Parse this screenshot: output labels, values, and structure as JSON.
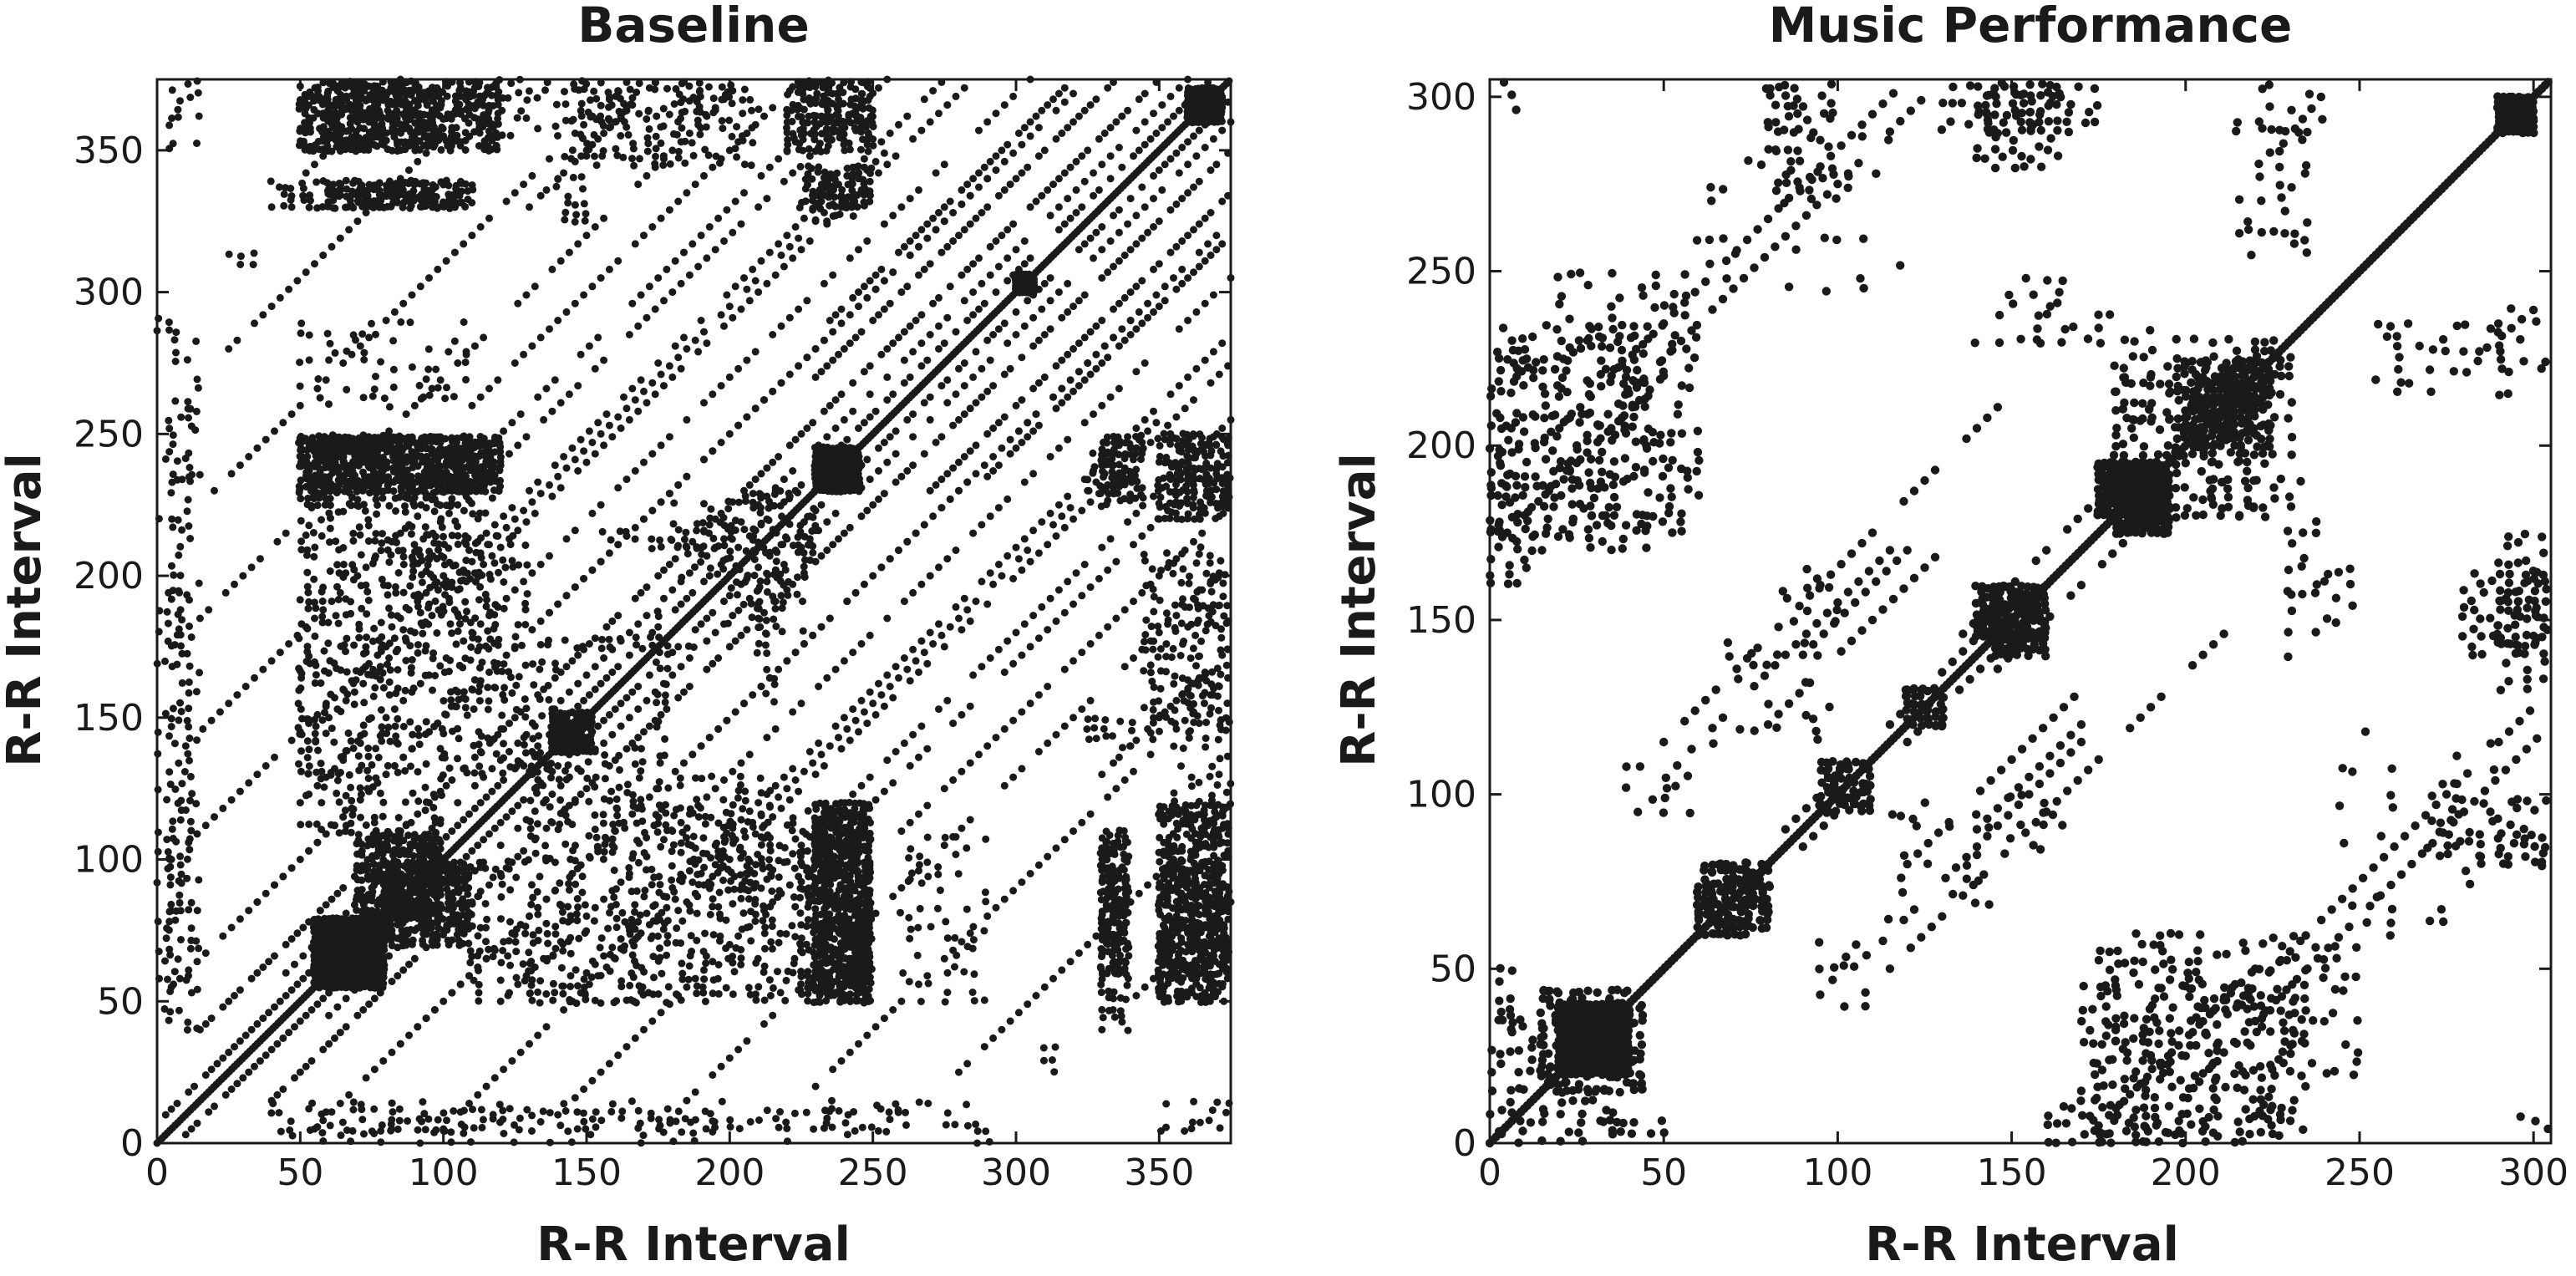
{
  "chart_data": [
    {
      "type": "scatter",
      "title": "Baseline",
      "xlabel": "R-R Interval",
      "ylabel": "R-R Interval",
      "xlim": [
        0,
        375
      ],
      "ylim": [
        0,
        375
      ],
      "xticks": [
        0,
        50,
        100,
        150,
        200,
        250,
        300,
        350
      ],
      "yticks": [
        0,
        50,
        100,
        150,
        200,
        250,
        300,
        350
      ],
      "grid": false,
      "marker_color": "#1a1a1a",
      "symmetric": true,
      "diagonal": [
        0,
        375
      ],
      "bands": [
        [
          5,
          55,
          0,
          290,
          3
        ],
        [
          5,
          100,
          0,
          250,
          3
        ],
        [
          10,
          140,
          0,
          230,
          3
        ],
        [
          15,
          185,
          0,
          190,
          3
        ],
        [
          20,
          230,
          0,
          145,
          3
        ],
        [
          25,
          280,
          0,
          95,
          3
        ],
        [
          40,
          330,
          0,
          45,
          3
        ],
        [
          3,
          10,
          0,
          365,
          2
        ],
        [
          15,
          40,
          0,
          335,
          2
        ],
        [
          45,
          60,
          0,
          315,
          3
        ],
        [
          35,
          85,
          0,
          285,
          3
        ],
        [
          50,
          120,
          0,
          255,
          3
        ],
        [
          60,
          150,
          0,
          225,
          3
        ],
        [
          70,
          170,
          0,
          205,
          3
        ],
        [
          90,
          210,
          0,
          165,
          3
        ],
        [
          110,
          260,
          0,
          115,
          3
        ],
        [
          130,
          330,
          0,
          45,
          2
        ],
        [
          230,
          270,
          0,
          105,
          2
        ],
        [
          235,
          290,
          0,
          85,
          2
        ]
      ],
      "blocks": [
        [
          55,
          80,
          55,
          80,
          1.6,
          1.0
        ],
        [
          80,
          110,
          70,
          100,
          1.8,
          0.8
        ],
        [
          230,
          245,
          230,
          245,
          1.5,
          1.0
        ],
        [
          300,
          306,
          300,
          306,
          1.2,
          1.0
        ],
        [
          360,
          372,
          360,
          372,
          1.3,
          0.9
        ],
        [
          138,
          152,
          138,
          152,
          1.5,
          0.7
        ],
        [
          230,
          250,
          50,
          120,
          1.7,
          0.75
        ],
        [
          330,
          340,
          40,
          110,
          2.2,
          0.6
        ],
        [
          350,
          375,
          50,
          120,
          1.6,
          0.6
        ],
        [
          100,
          140,
          130,
          170,
          2.6,
          0.35
        ],
        [
          160,
          230,
          50,
          120,
          2.6,
          0.35
        ],
        [
          110,
          150,
          50,
          100,
          2.6,
          0.35
        ],
        [
          50,
          85,
          130,
          180,
          2.8,
          0.35
        ],
        [
          200,
          230,
          180,
          230,
          2.6,
          0.3
        ],
        [
          260,
          290,
          50,
          110,
          3.2,
          0.3
        ],
        [
          330,
          345,
          225,
          250,
          2.0,
          0.6
        ],
        [
          350,
          375,
          220,
          250,
          2.0,
          0.6
        ],
        [
          345,
          375,
          140,
          210,
          2.6,
          0.4
        ],
        [
          0,
          15,
          40,
          200,
          3.5,
          0.3
        ],
        [
          0,
          15,
          220,
          290,
          3.5,
          0.25
        ],
        [
          50,
          110,
          225,
          250,
          2.2,
          0.6
        ],
        [
          90,
          130,
          180,
          215,
          2.6,
          0.4
        ],
        [
          60,
          100,
          355,
          375,
          2.6,
          0.5
        ],
        [
          120,
          180,
          355,
          375,
          3.2,
          0.4
        ],
        [
          180,
          210,
          355,
          375,
          3.0,
          0.35
        ],
        [
          225,
          250,
          355,
          375,
          2.4,
          0.5
        ],
        [
          60,
          110,
          330,
          338,
          2.0,
          0.8
        ],
        [
          230,
          245,
          325,
          340,
          2.2,
          0.6
        ],
        [
          140,
          150,
          325,
          340,
          3.0,
          0.5
        ],
        [
          40,
          130,
          5,
          14,
          3.2,
          0.5
        ],
        [
          140,
          220,
          5,
          14,
          3.2,
          0.45
        ],
        [
          230,
          260,
          5,
          16,
          3.2,
          0.35
        ],
        [
          350,
          375,
          5,
          15,
          3.0,
          0.5
        ],
        [
          25,
          35,
          305,
          316,
          4,
          0.4
        ],
        [
          175,
          180,
          110,
          190,
          3.0,
          0.4
        ],
        [
          210,
          220,
          155,
          200,
          3.0,
          0.35
        ]
      ]
    },
    {
      "type": "scatter",
      "title": "Music Performance",
      "xlabel": "R-R Interval",
      "ylabel": "R-R Interval",
      "xlim": [
        0,
        305
      ],
      "ylim": [
        0,
        305
      ],
      "xticks": [
        0,
        50,
        100,
        150,
        200,
        250,
        300
      ],
      "yticks": [
        0,
        50,
        100,
        150,
        200,
        250,
        300
      ],
      "grid": false,
      "marker_color": "#1a1a1a",
      "symmetric": true,
      "diagonal": [
        0,
        305
      ],
      "bands": [
        [
          50,
          115,
          0,
          100,
          3
        ],
        [
          85,
          90,
          0,
          70,
          3
        ],
        [
          110,
          55,
          0,
          60,
          3
        ],
        [
          140,
          130,
          0,
          55,
          3
        ],
        [
          120,
          80,
          0,
          50,
          3
        ],
        [
          140,
          90,
          0,
          30,
          3
        ],
        [
          175,
          5,
          0,
          45,
          3
        ],
        [
          180,
          10,
          0,
          40,
          3
        ],
        [
          205,
          20,
          0,
          100,
          3
        ],
        [
          200,
          25,
          0,
          100,
          3
        ],
        [
          170,
          15,
          0,
          40,
          3
        ]
      ],
      "blocks": [
        [
          15,
          45,
          15,
          45,
          2.2,
          0.5
        ],
        [
          25,
          40,
          20,
          40,
          1.5,
          1.0
        ],
        [
          180,
          195,
          175,
          195,
          1.5,
          0.9
        ],
        [
          200,
          225,
          200,
          225,
          2.0,
          0.6
        ],
        [
          290,
          300,
          290,
          300,
          1.4,
          0.95
        ],
        [
          145,
          160,
          140,
          160,
          1.6,
          0.7
        ],
        [
          0,
          45,
          170,
          235,
          3.2,
          0.4
        ],
        [
          60,
          80,
          60,
          80,
          2.0,
          0.6
        ],
        [
          95,
          110,
          95,
          110,
          2.0,
          0.6
        ],
        [
          120,
          130,
          120,
          130,
          2.0,
          0.55
        ],
        [
          215,
          235,
          255,
          305,
          3.2,
          0.3
        ],
        [
          60,
          120,
          245,
          290,
          3.6,
          0.18
        ],
        [
          140,
          165,
          280,
          305,
          2.6,
          0.45
        ],
        [
          80,
          100,
          270,
          305,
          3.0,
          0.3
        ],
        [
          140,
          190,
          230,
          240,
          3.5,
          0.3
        ],
        [
          180,
          225,
          180,
          230,
          2.5,
          0.35
        ],
        [
          0,
          15,
          0,
          40,
          3.0,
          0.35
        ],
        [
          175,
          230,
          0,
          60,
          2.6,
          0.3
        ],
        [
          290,
          305,
          130,
          175,
          2.6,
          0.5
        ],
        [
          290,
          305,
          80,
          100,
          2.6,
          0.45
        ],
        [
          290,
          305,
          225,
          240,
          3.5,
          0.4
        ],
        [
          225,
          250,
          20,
          60,
          3.0,
          0.35
        ],
        [
          160,
          200,
          0,
          12,
          2.6,
          0.4
        ],
        [
          20,
          35,
          0,
          6,
          3.0,
          0.4
        ],
        [
          35,
          50,
          0,
          6,
          3.0,
          0.3
        ],
        [
          115,
          145,
          65,
          100,
          3.6,
          0.3
        ],
        [
          150,
          165,
          85,
          100,
          3.0,
          0.35
        ],
        [
          150,
          165,
          230,
          250,
          3.5,
          0.3
        ],
        [
          95,
          110,
          40,
          60,
          3.4,
          0.25
        ],
        [
          0,
          10,
          290,
          305,
          3.5,
          0.3
        ]
      ]
    }
  ]
}
